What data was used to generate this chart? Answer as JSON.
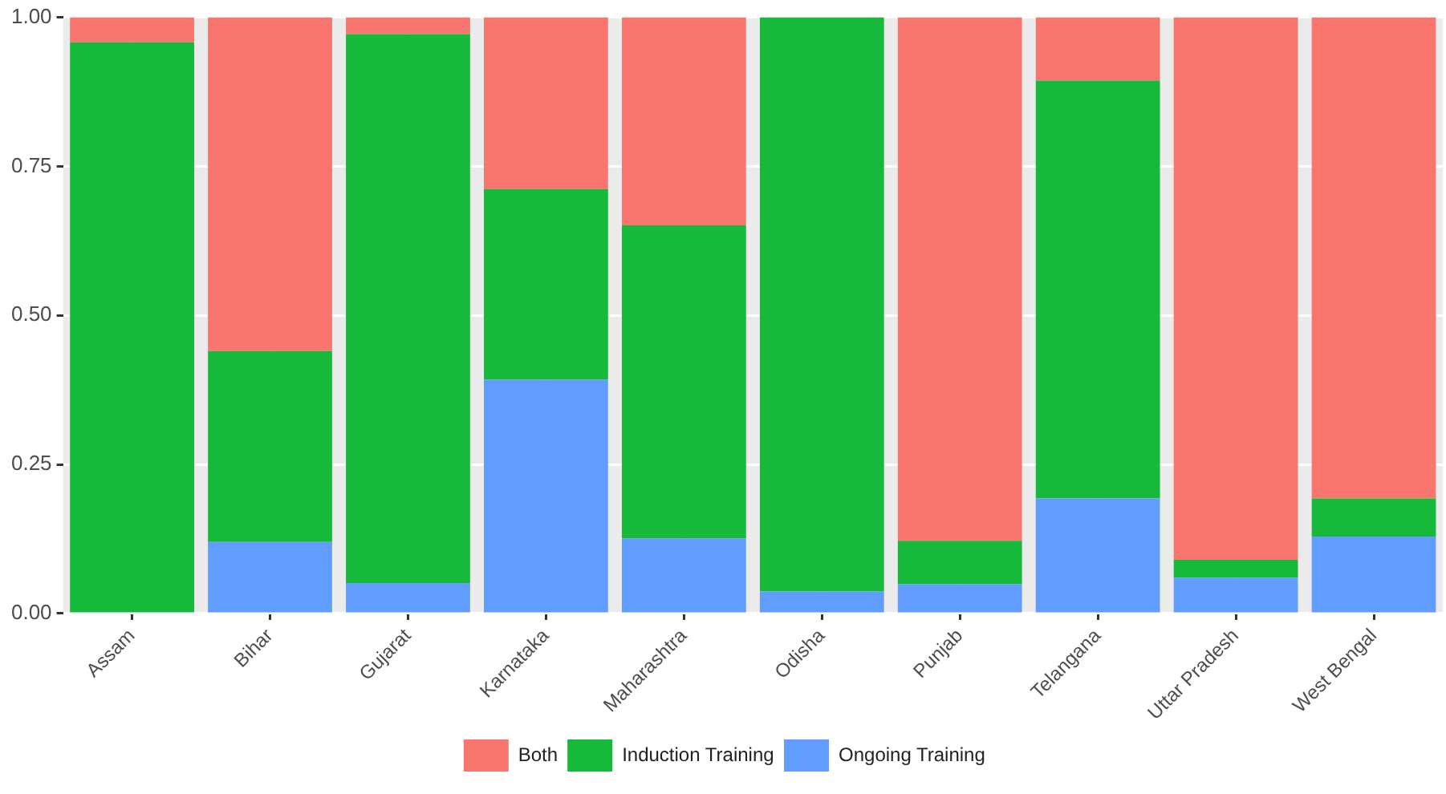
{
  "chart_data": {
    "type": "bar",
    "stacked": true,
    "categories": [
      "Assam",
      "Bihar",
      "Gujarat",
      "Karnataka",
      "Maharashtra",
      "Odisha",
      "Punjab",
      "Telangana",
      "Uttar Pradesh",
      "West Bengal"
    ],
    "series": [
      {
        "name": "Ongoing Training",
        "color": "#619cff",
        "values": [
          0,
          0.12,
          0.051,
          0.392,
          0.126,
          0.037,
          0.049,
          0.193,
          0.06,
          0.129
        ]
      },
      {
        "name": "Induction Training",
        "color": "#17b93a",
        "values": [
          0.958,
          0.32,
          0.921,
          0.32,
          0.525,
          0.963,
          0.073,
          0.701,
          0.03,
          0.064
        ]
      },
      {
        "name": "Both",
        "color": "#f8766d",
        "values": [
          0.042,
          0.56,
          0.028,
          0.288,
          0.349,
          0,
          0.878,
          0.106,
          0.91,
          0.807
        ]
      }
    ],
    "ylim": [
      0,
      1
    ],
    "yticks": [
      {
        "value": 0,
        "label": "0.00"
      },
      {
        "value": 0.25,
        "label": "0.25"
      },
      {
        "value": 0.5,
        "label": "0.50"
      },
      {
        "value": 0.75,
        "label": "0.75"
      },
      {
        "value": 1,
        "label": "1.00"
      }
    ],
    "grid": true,
    "legend": "bottom"
  }
}
